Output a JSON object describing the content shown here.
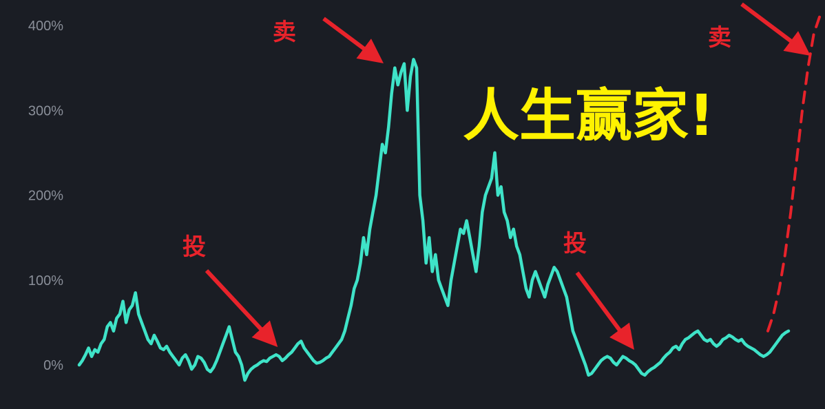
{
  "chart_data": {
    "type": "line",
    "title": "",
    "xlabel": "",
    "ylabel": "",
    "ylim": [
      -25,
      420
    ],
    "y_ticks": [
      "0%",
      "100%",
      "200%",
      "300%",
      "400%"
    ],
    "y_tick_values": [
      0,
      100,
      200,
      300,
      400
    ],
    "grid": false,
    "legend": "none",
    "series": [
      {
        "color": "#3fe3c8",
        "values": [
          0,
          5,
          12,
          20,
          10,
          18,
          15,
          25,
          30,
          45,
          50,
          40,
          55,
          60,
          75,
          50,
          65,
          70,
          85,
          60,
          50,
          40,
          30,
          25,
          35,
          28,
          20,
          18,
          22,
          15,
          10,
          5,
          0,
          8,
          12,
          5,
          -5,
          0,
          10,
          8,
          3,
          -5,
          -8,
          -3,
          5,
          15,
          25,
          35,
          45,
          30,
          15,
          10,
          0,
          -18,
          -10,
          -5,
          -2,
          0,
          3,
          5,
          4,
          8,
          10,
          12,
          10,
          5,
          8,
          12,
          15,
          20,
          25,
          28,
          20,
          15,
          10,
          5,
          2,
          3,
          5,
          8,
          10,
          15,
          20,
          25,
          30,
          40,
          55,
          70,
          90,
          100,
          120,
          150,
          130,
          160,
          180,
          200,
          230,
          260,
          250,
          280,
          320,
          350,
          330,
          345,
          355,
          300,
          340,
          360,
          350,
          200,
          170,
          120,
          150,
          110,
          130,
          100,
          90,
          80,
          70,
          100,
          120,
          140,
          160,
          155,
          170,
          150,
          130,
          110,
          140,
          180,
          200,
          210,
          220,
          250,
          200,
          210,
          180,
          170,
          150,
          160,
          140,
          130,
          110,
          90,
          80,
          100,
          110,
          100,
          90,
          80,
          95,
          105,
          115,
          110,
          100,
          90,
          80,
          60,
          40,
          30,
          20,
          10,
          0,
          -12,
          -10,
          -5,
          0,
          5,
          8,
          10,
          8,
          3,
          0,
          5,
          10,
          8,
          5,
          3,
          0,
          -5,
          -10,
          -12,
          -8,
          -5,
          -3,
          0,
          3,
          8,
          12,
          15,
          20,
          22,
          18,
          25,
          30,
          32,
          35,
          38,
          40,
          35,
          30,
          28,
          30,
          25,
          22,
          25,
          30,
          32,
          35,
          33,
          30,
          28,
          30,
          25,
          22,
          20,
          18,
          15,
          12,
          10,
          12,
          15,
          20,
          25,
          30,
          35,
          38,
          40
        ]
      }
    ],
    "forecast": {
      "color": "#e8232b",
      "style": "dashed",
      "values": [
        40,
        60,
        90,
        130,
        180,
        240,
        300,
        350,
        390,
        410
      ]
    },
    "annotations": {
      "buy_1": "投",
      "sell_1": "卖",
      "buy_2": "投",
      "sell_2": "卖",
      "headline": "人生赢家!"
    }
  },
  "colors": {
    "background": "#1a1d24",
    "line": "#3fe3c8",
    "annotation": "#e8232b",
    "headline": "#fff200"
  }
}
